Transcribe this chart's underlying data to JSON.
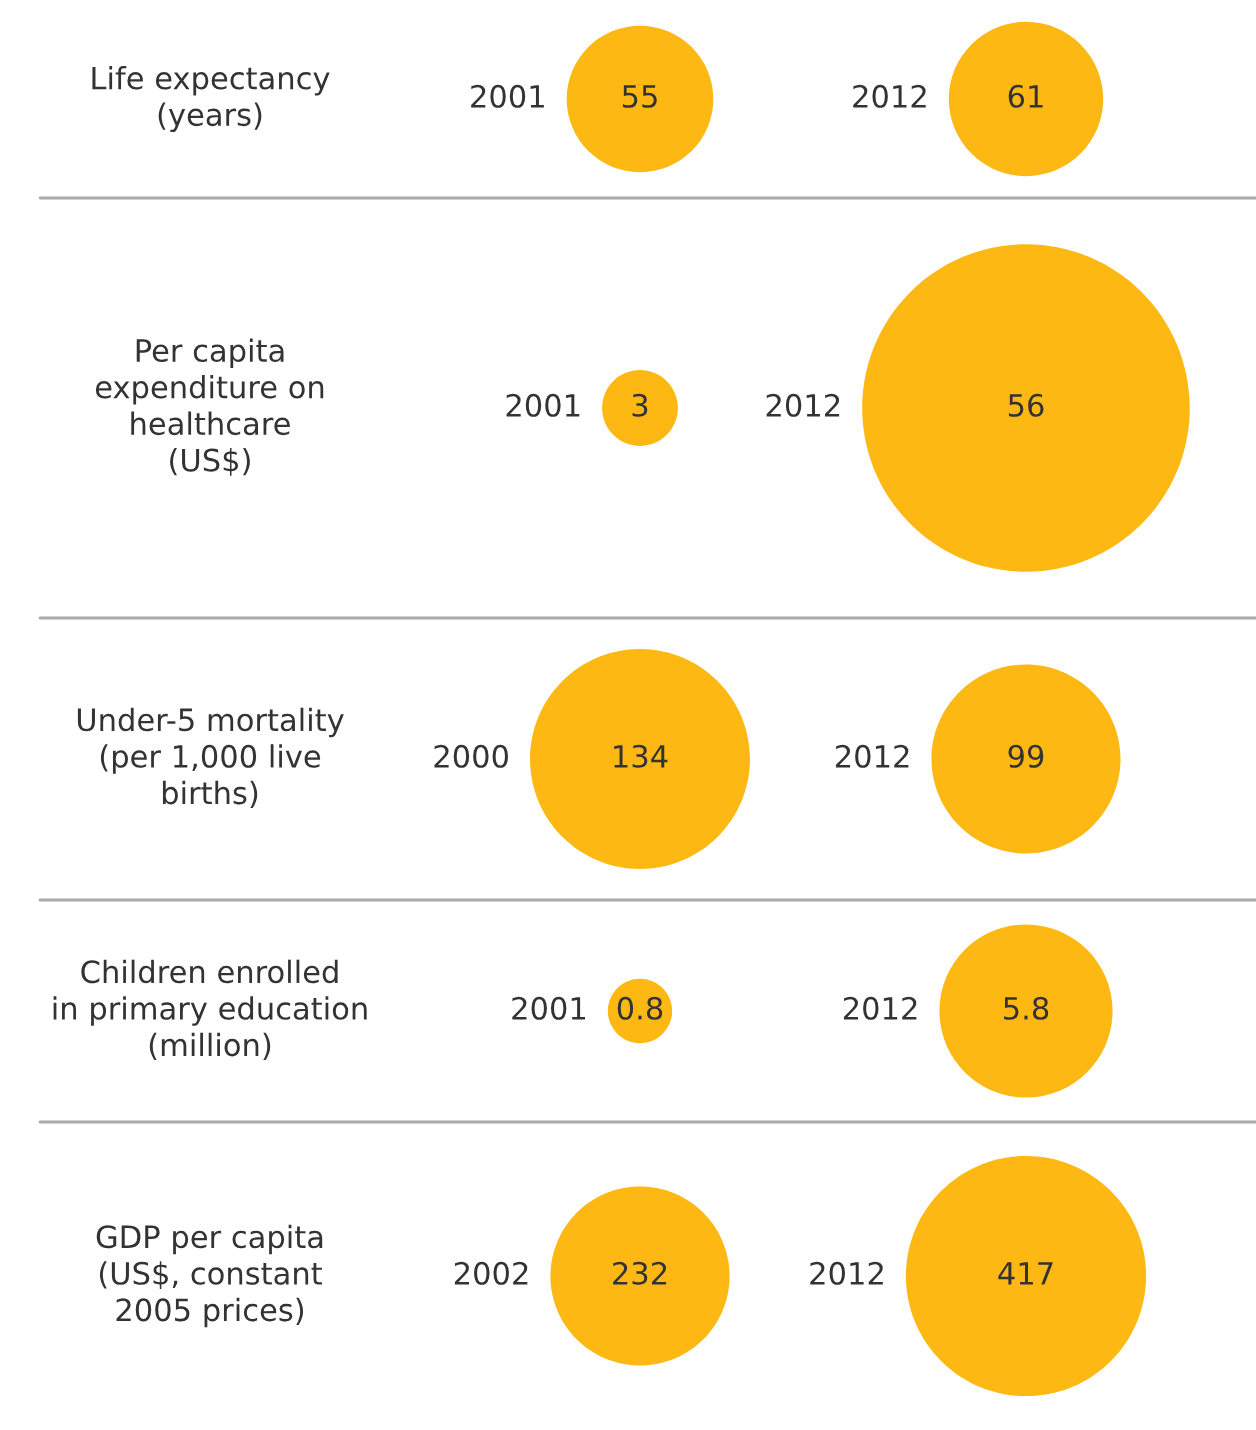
{
  "chart_data": [
    {
      "type": "other",
      "title": "Life expectancy\n(years)",
      "categories": [
        "2001",
        "2012"
      ],
      "values": [
        55,
        61
      ],
      "color": "#fdb813",
      "data_labels": true
    },
    {
      "type": "other",
      "title": "Per capita\nexpenditure on\nhealthcare\n(US$)",
      "categories": [
        "2001",
        "2012"
      ],
      "values": [
        3,
        56
      ],
      "color": "#fdb813",
      "data_labels": true
    },
    {
      "type": "other",
      "title": "Under-5 mortality\n(per 1,000 live\nbirths)",
      "categories": [
        "2000",
        "2012"
      ],
      "values": [
        134,
        99
      ],
      "color": "#fdb813",
      "data_labels": true
    },
    {
      "type": "other",
      "title": "Children enrolled\nin primary education\n(million)",
      "categories": [
        "2001",
        "2012"
      ],
      "values": [
        0.8,
        5.8
      ],
      "color": "#fdb813",
      "data_labels": true
    },
    {
      "type": "other",
      "title": "GDP per capita\n(US$, constant\n2005 prices)",
      "categories": [
        "2002",
        "2012"
      ],
      "values": [
        232,
        417
      ],
      "color": "#fdb813",
      "data_labels": true
    }
  ]
}
